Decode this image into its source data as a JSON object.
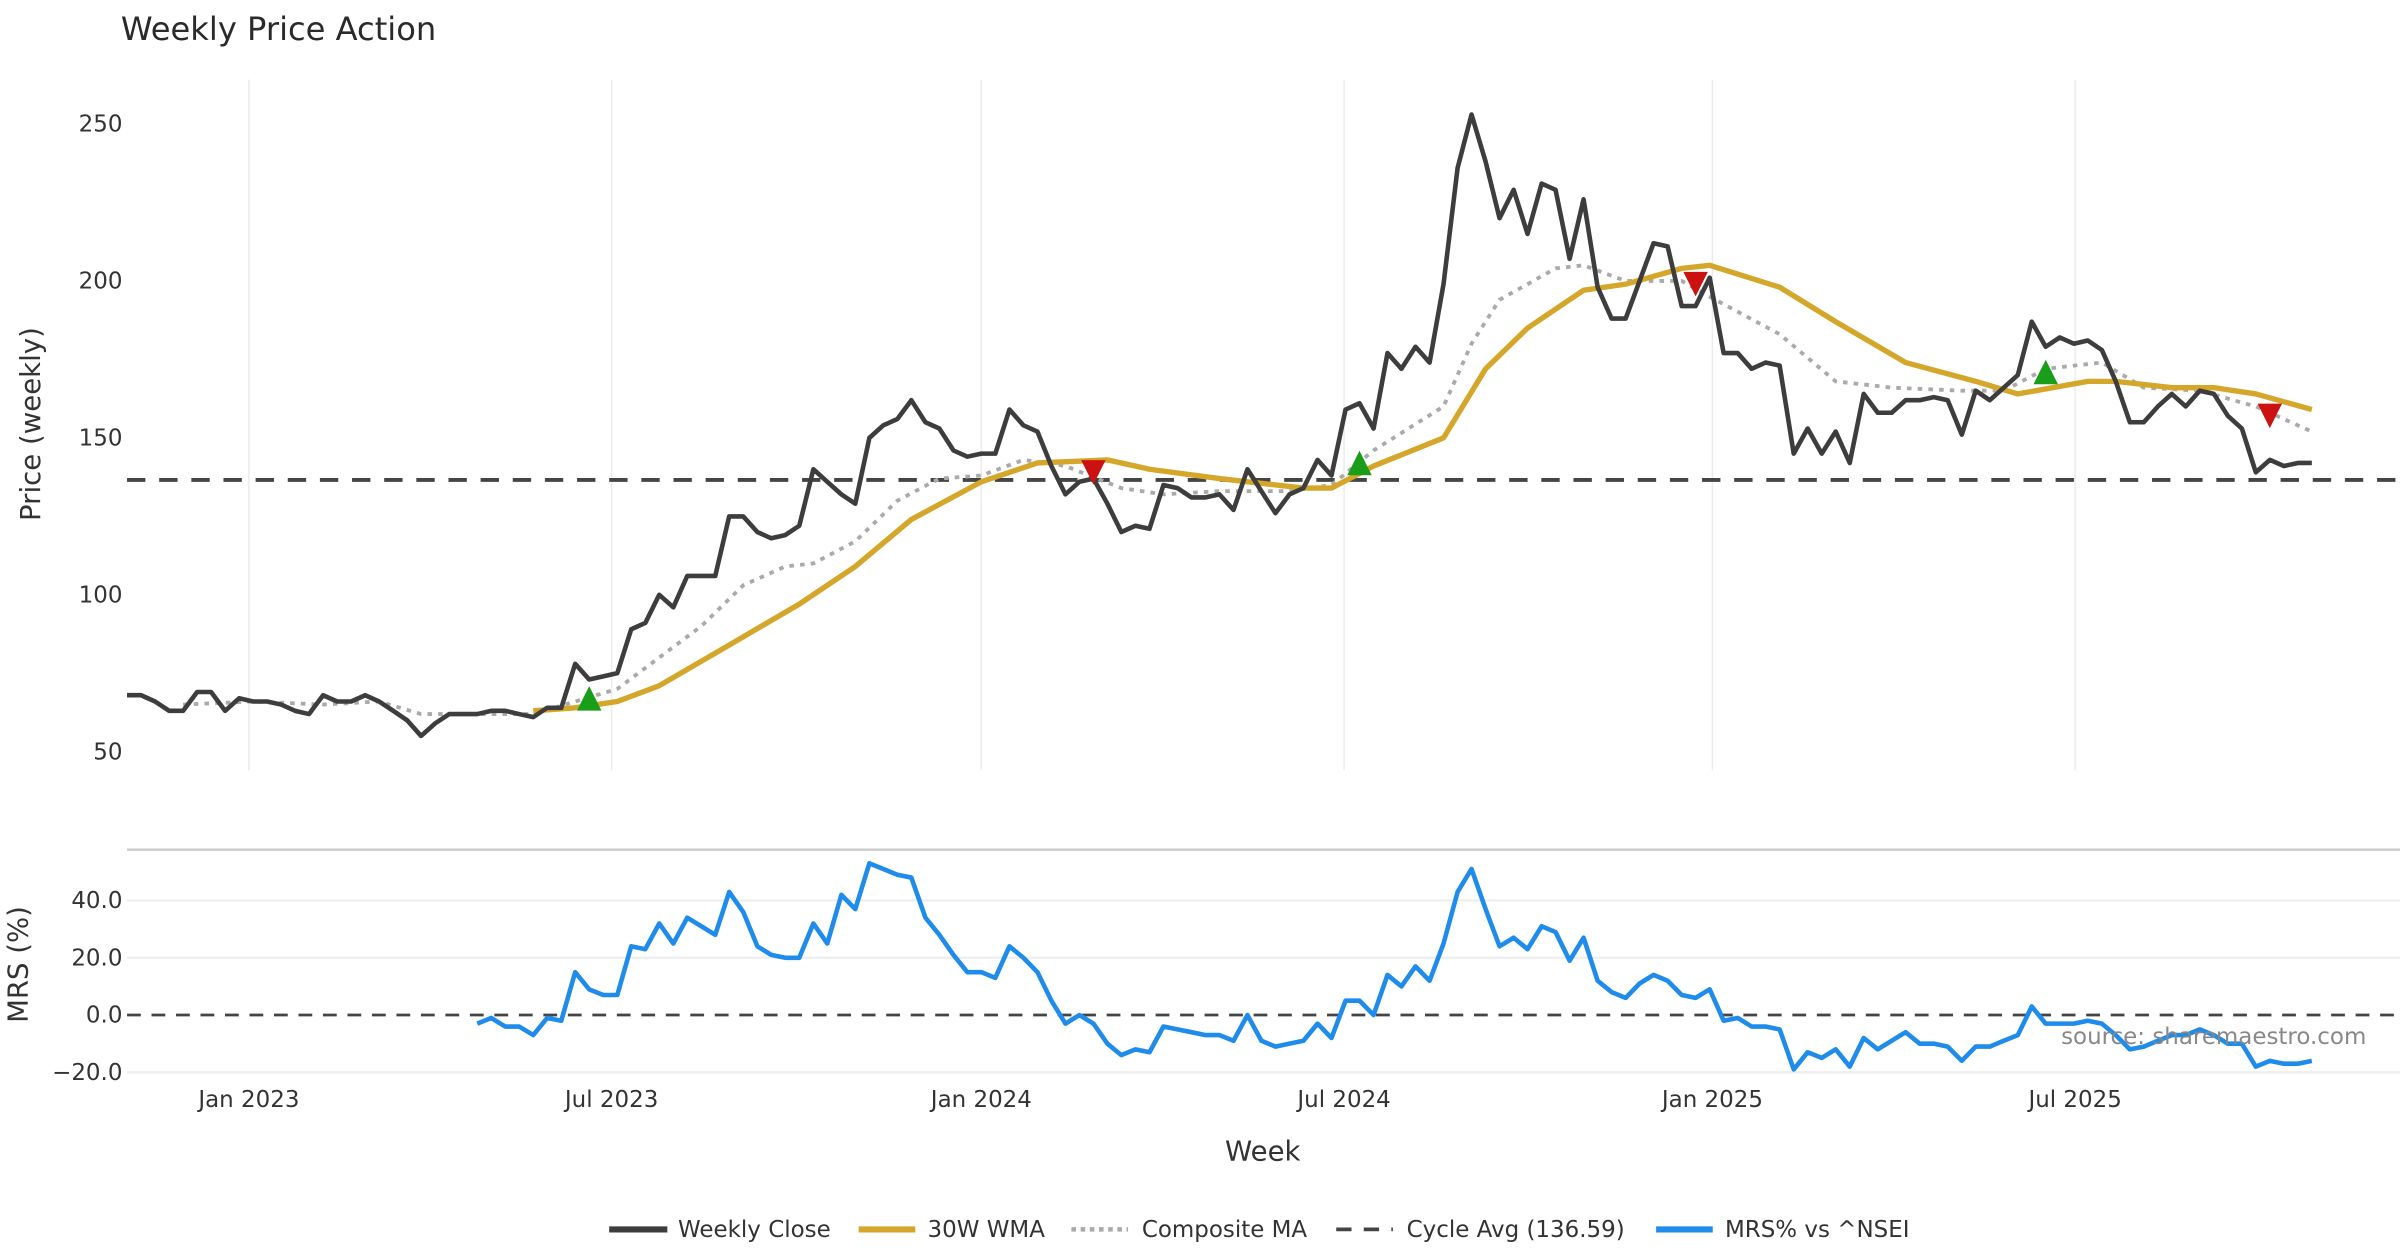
{
  "chart_data": [
    {
      "type": "line",
      "title": "Weekly Price Action",
      "ylabel": "Price (weekly)",
      "xlabel": "Week",
      "x_unit": "week index (weekly bars, week 0 ≈ early Nov 2022)",
      "ylim": [
        45,
        265
      ],
      "yticks": [
        50,
        100,
        150,
        200,
        250
      ],
      "xticks": [
        {
          "label": "Jan 2023",
          "week": 8.7
        },
        {
          "label": "Jul 2023",
          "week": 34.6
        },
        {
          "label": "Jan 2024",
          "week": 61.0
        },
        {
          "label": "Jul 2024",
          "week": 86.9
        },
        {
          "label": "Jan 2025",
          "week": 113.2
        },
        {
          "label": "Jul 2025",
          "week": 139.1
        }
      ],
      "grid": "vertical",
      "cycle_avg": 136.59,
      "series": [
        {
          "name": "Weekly Close",
          "color": "#3d3d3d",
          "start_week": 0,
          "values": [
            68,
            68,
            66,
            63,
            63,
            69,
            69,
            63,
            67,
            66,
            66,
            65,
            63,
            62,
            68,
            66,
            66,
            68,
            66,
            63,
            60,
            55,
            59,
            62,
            62,
            62,
            63,
            63,
            62,
            61,
            64,
            64,
            78,
            73,
            74,
            75,
            89,
            91,
            100,
            96,
            106,
            106,
            106,
            125,
            125,
            120,
            118,
            119,
            122,
            140,
            136,
            132,
            129,
            150,
            154,
            156,
            162,
            155,
            153,
            146,
            144,
            145,
            145,
            159,
            154,
            152,
            141,
            132,
            136,
            137,
            129,
            120,
            122,
            121,
            135,
            134,
            131,
            131,
            132,
            127,
            140,
            133,
            126,
            132,
            134,
            143,
            138,
            159,
            161,
            153,
            177,
            172,
            179,
            174,
            199,
            236,
            253,
            238,
            220,
            229,
            215,
            231,
            229,
            207,
            226,
            198,
            188,
            188,
            200,
            212,
            211,
            192,
            192,
            201,
            177,
            177,
            172,
            174,
            173,
            145,
            153,
            145,
            152,
            142,
            164,
            158,
            158,
            162,
            162,
            163,
            162,
            151,
            165,
            162,
            166,
            170,
            187,
            179,
            182,
            180,
            181,
            178,
            168,
            155,
            155,
            160,
            164,
            160,
            165,
            164,
            157,
            153,
            139,
            143,
            141,
            142,
            142
          ]
        },
        {
          "name": "30W WMA",
          "color": "#d4a62a",
          "points": [
            [
              29,
              63
            ],
            [
              32,
              64
            ],
            [
              35,
              66
            ],
            [
              38,
              71
            ],
            [
              43,
              84
            ],
            [
              48,
              97
            ],
            [
              52,
              109
            ],
            [
              56,
              124
            ],
            [
              61,
              136
            ],
            [
              65,
              142
            ],
            [
              70,
              143
            ],
            [
              73,
              140
            ],
            [
              78,
              137
            ],
            [
              84,
              134
            ],
            [
              86,
              134
            ],
            [
              89,
              141
            ],
            [
              94,
              150
            ],
            [
              97,
              172
            ],
            [
              100,
              185
            ],
            [
              104,
              197
            ],
            [
              107,
              199
            ],
            [
              111,
              204
            ],
            [
              113,
              205
            ],
            [
              118,
              198
            ],
            [
              122,
              187
            ],
            [
              127,
              174
            ],
            [
              132,
              168
            ],
            [
              135,
              164
            ],
            [
              140,
              168
            ],
            [
              142,
              168
            ],
            [
              146,
              166
            ],
            [
              149,
              166
            ],
            [
              152,
              164
            ],
            [
              156,
              159
            ]
          ]
        },
        {
          "name": "Composite MA",
          "color": "#aaaaaa",
          "points": [
            [
              4,
              65
            ],
            [
              9,
              66
            ],
            [
              14,
              65
            ],
            [
              18,
              66
            ],
            [
              21,
              62
            ],
            [
              26,
              62
            ],
            [
              29,
              62
            ],
            [
              32,
              66
            ],
            [
              35,
              70
            ],
            [
              38,
              80
            ],
            [
              41,
              90
            ],
            [
              44,
              103
            ],
            [
              47,
              109
            ],
            [
              49,
              110
            ],
            [
              52,
              117
            ],
            [
              55,
              130
            ],
            [
              58,
              137
            ],
            [
              61,
              138
            ],
            [
              64,
              143
            ],
            [
              67,
              141
            ],
            [
              71,
              134
            ],
            [
              74,
              132
            ],
            [
              78,
              133
            ],
            [
              83,
              133
            ],
            [
              86,
              135
            ],
            [
              89,
              146
            ],
            [
              94,
              160
            ],
            [
              96,
              180
            ],
            [
              98,
              194
            ],
            [
              100,
              199
            ],
            [
              102,
              204
            ],
            [
              104,
              205
            ],
            [
              107,
              200
            ],
            [
              111,
              200
            ],
            [
              113,
              195
            ],
            [
              118,
              183
            ],
            [
              122,
              168
            ],
            [
              126,
              166
            ],
            [
              131,
              165
            ],
            [
              134,
              165
            ],
            [
              137,
              172
            ],
            [
              141,
              174
            ],
            [
              144,
              166
            ],
            [
              148,
              165
            ],
            [
              152,
              160
            ],
            [
              156,
              152
            ]
          ]
        },
        {
          "name": "Cycle Avg (136.59)",
          "color": "#444444",
          "value": 136.59
        }
      ],
      "signals": [
        {
          "type": "buy",
          "week": 33,
          "price": 67,
          "color": "#1a9e1a"
        },
        {
          "type": "sell",
          "week": 69,
          "price": 139,
          "color": "#cc1111"
        },
        {
          "type": "buy",
          "week": 88,
          "price": 142,
          "color": "#1a9e1a"
        },
        {
          "type": "sell",
          "week": 112,
          "price": 199,
          "color": "#cc1111"
        },
        {
          "type": "buy",
          "week": 137,
          "price": 171,
          "color": "#1a9e1a"
        },
        {
          "type": "sell",
          "week": 153,
          "price": 157,
          "color": "#cc1111"
        }
      ]
    },
    {
      "type": "line",
      "ylabel": "MRS (%)",
      "ylim": [
        -24,
        58
      ],
      "yticks": [
        "40.0",
        "20.0",
        "0.0",
        "−20.0"
      ],
      "ytick_values": [
        40,
        20,
        0,
        -20
      ],
      "grid": "horizontal",
      "zero_line": 0,
      "series": [
        {
          "name": "MRS% vs ^NSEI",
          "color": "#1f8ceb",
          "start_week": 25,
          "values": [
            -3,
            -1,
            -4,
            -4,
            -7,
            -1,
            -2,
            15,
            9,
            7,
            7,
            24,
            23,
            32,
            25,
            34,
            31,
            28,
            43,
            36,
            24,
            21,
            20,
            20,
            32,
            25,
            42,
            37,
            53,
            51,
            49,
            48,
            34,
            28,
            21,
            15,
            15,
            13,
            24,
            20,
            15,
            5,
            -3,
            0,
            -3,
            -10,
            -14,
            -12,
            -13,
            -4,
            -5,
            -6,
            -7,
            -7,
            -9,
            0,
            -9,
            -11,
            -10,
            -9,
            -3,
            -8,
            5,
            5,
            0,
            14,
            10,
            17,
            12,
            25,
            43,
            51,
            37,
            24,
            27,
            23,
            31,
            29,
            19,
            27,
            12,
            8,
            6,
            11,
            14,
            12,
            7,
            6,
            9,
            -2,
            -1,
            -4,
            -4,
            -5,
            -19,
            -13,
            -15,
            -12,
            -18,
            -8,
            -12,
            -9,
            -6,
            -10,
            -10,
            -11,
            -16,
            -11,
            -11,
            -9,
            -7,
            3,
            -3,
            -3,
            -3,
            -2,
            -3,
            -7,
            -12,
            -11,
            -9,
            -7,
            -7,
            -5,
            -7,
            -10,
            -10,
            -18,
            -16,
            -17,
            -17,
            -16
          ]
        }
      ]
    }
  ],
  "legend": {
    "position": "bottom-center",
    "items": [
      "Weekly Close",
      "30W WMA",
      "Composite MA",
      "Cycle Avg (136.59)",
      "MRS% vs ^NSEI"
    ]
  },
  "source": "source: sharemaestro.com"
}
